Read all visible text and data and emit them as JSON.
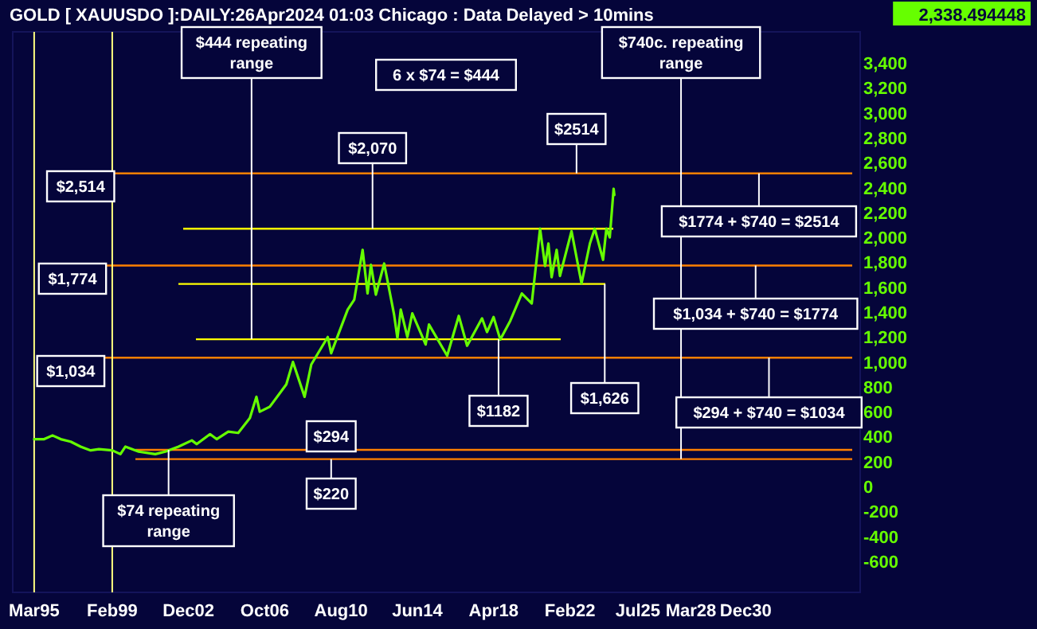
{
  "chart_data": {
    "type": "line",
    "title": "GOLD [ XAUUSDO ]:DAILY:26Apr2024 01:03 Chicago : Data Delayed > 10mins",
    "series": [
      {
        "color": "#66ff00",
        "x": [
          "1995-03",
          "1995-09",
          "1996-02",
          "1996-07",
          "1997-01",
          "1997-07",
          "1998-01",
          "1998-06",
          "1999-02",
          "1999-07",
          "1999-10",
          "2000-06",
          "2001-04",
          "2001-10",
          "2002-06",
          "2003-02",
          "2003-05",
          "2004-01",
          "2004-05",
          "2004-12",
          "2005-06",
          "2006-01",
          "2006-05",
          "2006-07",
          "2007-01",
          "2007-11",
          "2008-03",
          "2008-10",
          "2009-02",
          "2009-12",
          "2010-02",
          "2010-12",
          "2011-04",
          "2011-09",
          "2011-12",
          "2012-02",
          "2012-05",
          "2012-10",
          "2013-04",
          "2013-06",
          "2013-08",
          "2013-12",
          "2014-03",
          "2014-11",
          "2015-01",
          "2015-12",
          "2016-07",
          "2016-12",
          "2017-09",
          "2017-12",
          "2018-04",
          "2018-08",
          "2019-02",
          "2019-09",
          "2020-03",
          "2020-08",
          "2020-11",
          "2021-01",
          "2021-03",
          "2021-06",
          "2021-08",
          "2022-03",
          "2022-09",
          "2023-02",
          "2023-05",
          "2023-10",
          "2023-12",
          "2024-02",
          "2024-04-12",
          "2024-04-25"
        ],
        "values": [
          380,
          380,
          410,
          380,
          360,
          320,
          290,
          300,
          290,
          260,
          320,
          280,
          260,
          280,
          320,
          370,
          340,
          420,
          380,
          440,
          430,
          550,
          720,
          600,
          640,
          820,
          1000,
          720,
          980,
          1200,
          1070,
          1420,
          1500,
          1900,
          1550,
          1780,
          1540,
          1790,
          1380,
          1190,
          1420,
          1200,
          1390,
          1140,
          1300,
          1050,
          1370,
          1130,
          1350,
          1240,
          1360,
          1180,
          1330,
          1550,
          1470,
          2070,
          1770,
          1950,
          1680,
          1900,
          1690,
          2050,
          1630,
          1950,
          2070,
          1820,
          2070,
          2000,
          2390,
          2340
        ]
      }
    ],
    "xlim": [
      "1994-02",
      "2036-09"
    ],
    "xticks": [
      {
        "value": "1995-03",
        "label": "Mar95"
      },
      {
        "value": "1999-02",
        "label": "Feb99"
      },
      {
        "value": "2002-12",
        "label": "Dec02"
      },
      {
        "value": "2006-10",
        "label": "Oct06"
      },
      {
        "value": "2010-08",
        "label": "Aug10"
      },
      {
        "value": "2014-06",
        "label": "Jun14"
      },
      {
        "value": "2018-04",
        "label": "Apr18"
      },
      {
        "value": "2022-02",
        "label": "Feb22"
      },
      {
        "value": "2025-07",
        "label": "Jul25"
      },
      {
        "value": "2028-03",
        "label": "Mar28"
      },
      {
        "value": "2030-12",
        "label": "Dec30"
      }
    ],
    "ylim": [
      -850,
      3650
    ],
    "yticks": [
      -600,
      -400,
      -200,
      0,
      200,
      400,
      600,
      800,
      {
        "value": 1000,
        "label": "1,000"
      },
      {
        "value": 1200,
        "label": "1,200"
      },
      {
        "value": 1400,
        "label": "1,400"
      },
      {
        "value": 1600,
        "label": "1,600"
      },
      {
        "value": 1800,
        "label": "1,800"
      },
      {
        "value": 2000,
        "label": "2,000"
      },
      {
        "value": 2200,
        "label": "2,200"
      },
      {
        "value": 2400,
        "label": "2,400"
      },
      {
        "value": 2600,
        "label": "2,600"
      },
      {
        "value": 2800,
        "label": "2,800"
      },
      {
        "value": 3000,
        "label": "3,000"
      },
      {
        "value": 3200,
        "label": "3,200"
      },
      {
        "value": 3400,
        "label": "3,400"
      }
    ],
    "grid": false,
    "ref_lines": [
      {
        "axis": "y",
        "value": 2514,
        "color": "#ff8000"
      },
      {
        "axis": "y",
        "value": 1774,
        "color": "#ff8000"
      },
      {
        "axis": "y",
        "value": 1034,
        "color": "#ff8000"
      },
      {
        "axis": "y",
        "value": 294,
        "color": "#ff8000"
      },
      {
        "axis": "y",
        "value": 220,
        "color": "#ff8000"
      },
      {
        "axis": "y",
        "value": 2070,
        "color": "#ffff00"
      },
      {
        "axis": "y",
        "value": 1626,
        "color": "#ffff00"
      },
      {
        "axis": "y",
        "value": 1182,
        "color": "#ffff00"
      },
      {
        "axis": "x",
        "value": "1995-03",
        "color": "#ffff80"
      },
      {
        "axis": "x",
        "value": "1999-02",
        "color": "#ffff80"
      }
    ],
    "annotations": [
      {
        "text": "$444 repeating range",
        "x": "2006-02",
        "y": 1182
      },
      "6 x $74 = $444",
      {
        "text": "$2,070",
        "x": "2012-03",
        "y": 2070
      },
      {
        "text": "$2514",
        "x": "2022-06",
        "y": 2514
      },
      {
        "text": "$740c. repeating range",
        "x": "2027-09",
        "y": 220
      },
      {
        "text": "$1774 + $740 = $2514",
        "x": "2031-08",
        "y": 2514
      },
      {
        "text": "$1,034 + $740 = $1774",
        "x": "2031-06",
        "y": 1774
      },
      {
        "text": "$294 + $740 = $1034",
        "x": "2032-02",
        "y": 1034
      },
      {
        "text": "$2,514",
        "x": "1997-07",
        "y": 2514
      },
      {
        "text": "$1,774",
        "x": "1997-02",
        "y": 1774
      },
      {
        "text": "$1,034",
        "x": "1997-01",
        "y": 1034
      },
      {
        "text": "$74 repeating range",
        "x": "2001-12",
        "y": 294
      },
      {
        "text": "$294",
        "x": "2010-02",
        "y": 294
      },
      {
        "text": "$220",
        "x": "2010-02",
        "y": 220
      },
      {
        "text": "$1182",
        "x": "2018-07",
        "y": 1182
      },
      {
        "text": "$1,626",
        "x": "2023-11",
        "y": 1626
      },
      "2,338.494448"
    ]
  }
}
